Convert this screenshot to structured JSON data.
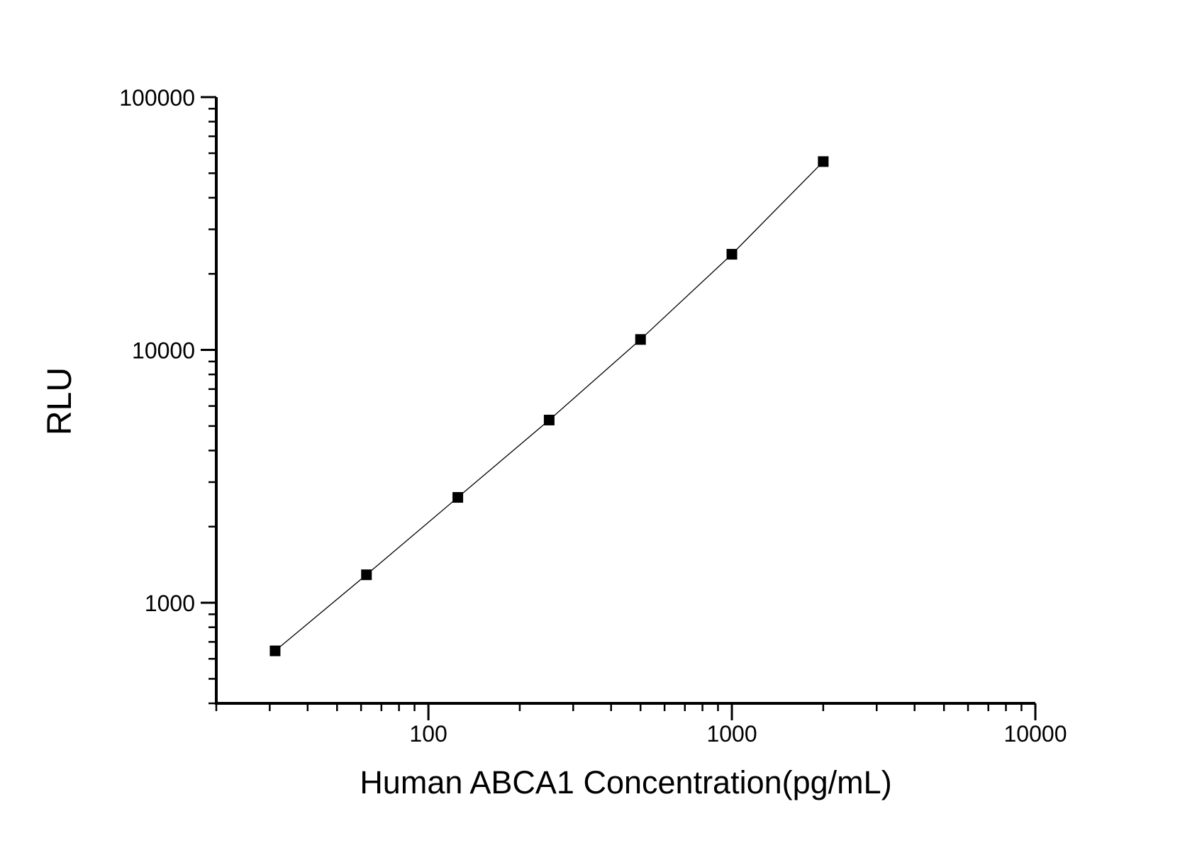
{
  "page": {
    "background_color": "#ffffff"
  },
  "chart_data": {
    "type": "line",
    "title": "",
    "xlabel": "Human ABCA1 Concentration(pg/mL)",
    "ylabel": "RLU",
    "x_scale": "log",
    "y_scale": "log",
    "xlim": [
      20,
      10000
    ],
    "ylim": [
      400,
      100000
    ],
    "x_major_ticks": [
      100,
      1000,
      10000
    ],
    "x_major_tick_labels": [
      "100",
      "1000",
      "10000"
    ],
    "y_major_ticks": [
      1000,
      10000,
      100000
    ],
    "y_major_tick_labels": [
      "1000",
      "10000",
      "100000"
    ],
    "grid": false,
    "legend_position": "none",
    "marker_shape": "filled-square",
    "marker_size_px": 15,
    "axis_color": "#000000",
    "line_color": "#000000",
    "marker_color": "#000000",
    "series": [
      {
        "x": [
          31.25,
          62.5,
          125,
          250,
          500,
          1000,
          2000
        ],
        "y": [
          645,
          1290,
          2610,
          5280,
          11000,
          23900,
          55600
        ]
      }
    ]
  }
}
